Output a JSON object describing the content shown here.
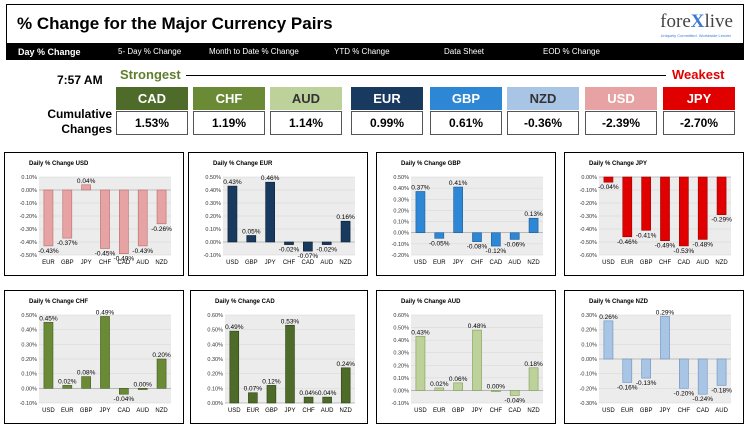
{
  "header": {
    "title": "% Change for the Major Currency Pairs",
    "logo_text_a": "fore",
    "logo_text_x": "X",
    "logo_text_b": "live",
    "logo_subtext": "Uniquely Committed. Worldwide Lender"
  },
  "nav": {
    "items": [
      "Day % Change",
      "5- Day % Change",
      "Month to Date % Change",
      "YTD % Change",
      "Data Sheet",
      "EOD % Change"
    ]
  },
  "summary": {
    "time": "7:57 AM",
    "strongest_label": "Strongest",
    "weakest_label": "Weakest",
    "cumulative_label_1": "Cumulative",
    "cumulative_label_2": "Changes",
    "currencies": [
      {
        "code": "CAD",
        "value": "1.53%",
        "color": "#4e6b2a"
      },
      {
        "code": "CHF",
        "value": "1.19%",
        "color": "#6a8a36"
      },
      {
        "code": "AUD",
        "value": "1.14%",
        "color": "#bcd29a",
        "text_color": "#333333"
      },
      {
        "code": "EUR",
        "value": "0.99%",
        "color": "#173a5e"
      },
      {
        "code": "GBP",
        "value": "0.61%",
        "color": "#2e87d4"
      },
      {
        "code": "NZD",
        "value": "-0.36%",
        "color": "#a9c5e6",
        "text_color": "#333333"
      },
      {
        "code": "USD",
        "value": "-2.39%",
        "color": "#e7a3a3"
      },
      {
        "code": "JPY",
        "value": "-2.70%",
        "color": "#e00000"
      }
    ]
  },
  "chart_data": [
    {
      "type": "bar",
      "title": "Daily % Change USD",
      "categories": [
        "EUR",
        "GBP",
        "JPY",
        "CHF",
        "CAD",
        "AUD",
        "NZD"
      ],
      "values": [
        -0.43,
        -0.37,
        0.04,
        -0.45,
        -0.49,
        -0.43,
        -0.26
      ],
      "labels": [
        "-0.43%",
        "-0.37%",
        "0.04%",
        "-0.45%",
        "-0.49%",
        "-0.43%",
        "-0.26%"
      ],
      "ylim": [
        -0.5,
        0.1
      ],
      "ticks": [
        0.1,
        0.0,
        -0.1,
        -0.2,
        -0.3,
        -0.4,
        -0.5
      ],
      "tick_labels": [
        "0.10%",
        "0.00%",
        "-0.10%",
        "-0.20%",
        "-0.30%",
        "-0.40%",
        "-0.50%"
      ],
      "color": "#e7a3a3",
      "stroke": "#b76a6a"
    },
    {
      "type": "bar",
      "title": "Daily % Change EUR",
      "categories": [
        "USD",
        "GBP",
        "JPY",
        "CHF",
        "CAD",
        "AUD",
        "NZD"
      ],
      "values": [
        0.43,
        0.05,
        0.46,
        -0.02,
        -0.07,
        -0.02,
        0.16
      ],
      "labels": [
        "0.43%",
        "0.05%",
        "0.46%",
        "-0.02%",
        "-0.07%",
        "-0.02%",
        "0.16%"
      ],
      "ylim": [
        -0.1,
        0.5
      ],
      "ticks": [
        0.5,
        0.4,
        0.3,
        0.2,
        0.1,
        0.0,
        -0.1
      ],
      "tick_labels": [
        "0.50%",
        "0.40%",
        "0.30%",
        "0.20%",
        "0.10%",
        "0.00%",
        "-0.10%"
      ],
      "color": "#173a5e",
      "stroke": "#0b1e33"
    },
    {
      "type": "bar",
      "title": "Daily % Change GBP",
      "categories": [
        "USD",
        "EUR",
        "JPY",
        "CHF",
        "CAD",
        "AUD",
        "NZD"
      ],
      "values": [
        0.37,
        -0.05,
        0.41,
        -0.08,
        -0.12,
        -0.06,
        0.13
      ],
      "labels": [
        "0.37%",
        "-0.05%",
        "0.41%",
        "-0.08%",
        "-0.12%",
        "-0.06%",
        "0.13%"
      ],
      "ylim": [
        -0.2,
        0.5
      ],
      "ticks": [
        0.5,
        0.4,
        0.3,
        0.2,
        0.1,
        0.0,
        -0.1,
        -0.2
      ],
      "tick_labels": [
        "0.50%",
        "0.40%",
        "0.30%",
        "0.20%",
        "0.10%",
        "0.00%",
        "-0.10%",
        "-0.20%"
      ],
      "color": "#2e87d4",
      "stroke": "#1b5d99"
    },
    {
      "type": "bar",
      "title": "Daily % Change JPY",
      "categories": [
        "USD",
        "EUR",
        "GBP",
        "CHF",
        "CAD",
        "AUD",
        "NZD"
      ],
      "values": [
        -0.04,
        -0.46,
        -0.41,
        -0.49,
        -0.53,
        -0.48,
        -0.29
      ],
      "labels": [
        "-0.04%",
        "-0.46%",
        "-0.41%",
        "-0.49%",
        "-0.53%",
        "-0.48%",
        "-0.29%"
      ],
      "ylim": [
        -0.6,
        0.0
      ],
      "ticks": [
        0.0,
        -0.1,
        -0.2,
        -0.3,
        -0.4,
        -0.5,
        -0.6
      ],
      "tick_labels": [
        "0.00%",
        "-0.10%",
        "-0.20%",
        "-0.30%",
        "-0.40%",
        "-0.50%",
        "-0.60%"
      ],
      "color": "#e00000",
      "stroke": "#990000"
    },
    {
      "type": "bar",
      "title": "Daily % Change CHF",
      "categories": [
        "USD",
        "EUR",
        "GBP",
        "JPY",
        "CAD",
        "AUD",
        "NZD"
      ],
      "values": [
        0.45,
        0.02,
        0.08,
        0.49,
        -0.04,
        0.0,
        0.2
      ],
      "labels": [
        "0.45%",
        "0.02%",
        "0.08%",
        "0.49%",
        "-0.04%",
        "0.00%",
        "0.20%"
      ],
      "ylim": [
        -0.1,
        0.5
      ],
      "ticks": [
        0.5,
        0.4,
        0.3,
        0.2,
        0.1,
        0.0,
        -0.1
      ],
      "tick_labels": [
        "0.50%",
        "0.40%",
        "0.30%",
        "0.20%",
        "0.10%",
        "0.00%",
        "-0.10%"
      ],
      "color": "#6a8a36",
      "stroke": "#3f5a1c"
    },
    {
      "type": "bar",
      "title": "Daily % Change CAD",
      "categories": [
        "USD",
        "EUR",
        "GBP",
        "JPY",
        "CHF",
        "AUD",
        "NZD"
      ],
      "values": [
        0.49,
        0.07,
        0.12,
        0.53,
        0.04,
        0.04,
        0.24
      ],
      "labels": [
        "0.49%",
        "0.07%",
        "0.12%",
        "0.53%",
        "0.04%",
        "0.04%",
        "0.24%"
      ],
      "ylim": [
        0.0,
        0.6
      ],
      "ticks": [
        0.6,
        0.5,
        0.4,
        0.3,
        0.2,
        0.1,
        0.0
      ],
      "tick_labels": [
        "0.60%",
        "0.50%",
        "0.40%",
        "0.30%",
        "0.20%",
        "0.10%",
        "0.00%"
      ],
      "color": "#4e6b2a",
      "stroke": "#2d4215"
    },
    {
      "type": "bar",
      "title": "Daily % Change AUD",
      "categories": [
        "USD",
        "EUR",
        "GBP",
        "JPY",
        "CHF",
        "CAD",
        "NZD"
      ],
      "values": [
        0.43,
        0.02,
        0.06,
        0.48,
        0.0,
        -0.04,
        0.18
      ],
      "labels": [
        "0.43%",
        "0.02%",
        "0.06%",
        "0.48%",
        "0.00%",
        "-0.04%",
        "0.18%"
      ],
      "ylim": [
        -0.1,
        0.6
      ],
      "ticks": [
        0.6,
        0.5,
        0.4,
        0.3,
        0.2,
        0.1,
        0.0,
        -0.1
      ],
      "tick_labels": [
        "0.60%",
        "0.50%",
        "0.40%",
        "0.30%",
        "0.20%",
        "0.10%",
        "0.00%",
        "-0.10%"
      ],
      "color": "#bcd29a",
      "stroke": "#809a5a"
    },
    {
      "type": "bar",
      "title": "Daily % Change NZD",
      "categories": [
        "USD",
        "EUR",
        "GBP",
        "JPY",
        "CHF",
        "CAD",
        "AUD"
      ],
      "values": [
        0.26,
        -0.16,
        -0.13,
        0.29,
        -0.2,
        -0.24,
        -0.18
      ],
      "labels": [
        "0.26%",
        "-0.16%",
        "-0.13%",
        "0.29%",
        "-0.20%",
        "-0.24%",
        "-0.18%"
      ],
      "ylim": [
        -0.3,
        0.3
      ],
      "ticks": [
        0.3,
        0.2,
        0.1,
        0.0,
        -0.1,
        -0.2,
        -0.3
      ],
      "tick_labels": [
        "0.30%",
        "0.20%",
        "0.10%",
        "0.00%",
        "-0.10%",
        "-0.20%",
        "-0.30%"
      ],
      "color": "#a9c5e6",
      "stroke": "#6b8fb8"
    }
  ]
}
